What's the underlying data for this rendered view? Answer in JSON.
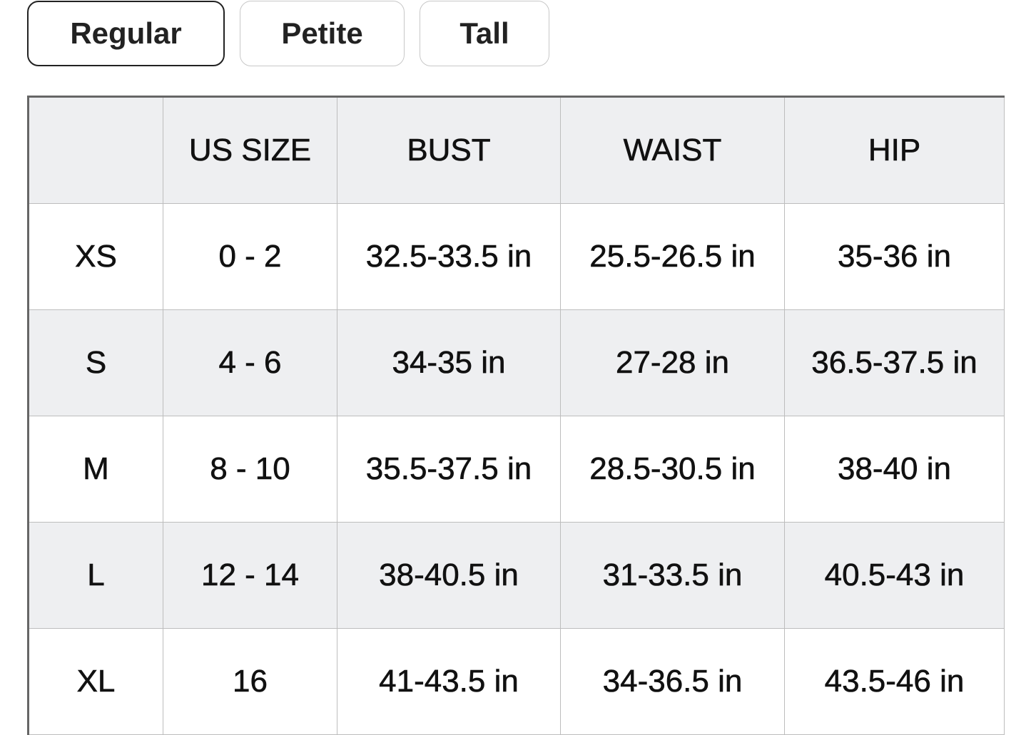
{
  "tabs": [
    {
      "label": "Regular",
      "active": true
    },
    {
      "label": "Petite",
      "active": false
    },
    {
      "label": "Tall",
      "active": false
    }
  ],
  "table": {
    "headers": [
      "",
      "US SIZE",
      "BUST",
      "WAIST",
      "HIP"
    ],
    "rows": [
      [
        "XS",
        "0 - 2",
        "32.5-33.5 in",
        "25.5-26.5 in",
        "35-36 in"
      ],
      [
        "S",
        "4 - 6",
        "34-35 in",
        "27-28 in",
        "36.5-37.5 in"
      ],
      [
        "M",
        "8 - 10",
        "35.5-37.5 in",
        "28.5-30.5 in",
        "38-40 in"
      ],
      [
        "L",
        "12 - 14",
        "38-40.5 in",
        "31-33.5 in",
        "40.5-43 in"
      ],
      [
        "XL",
        "16",
        "41-43.5 in",
        "34-36.5 in",
        "43.5-46 in"
      ]
    ]
  },
  "colors": {
    "header_bg": "#eeeff1",
    "alt_row_bg": "#eeeff1",
    "active_border": "#222222"
  }
}
